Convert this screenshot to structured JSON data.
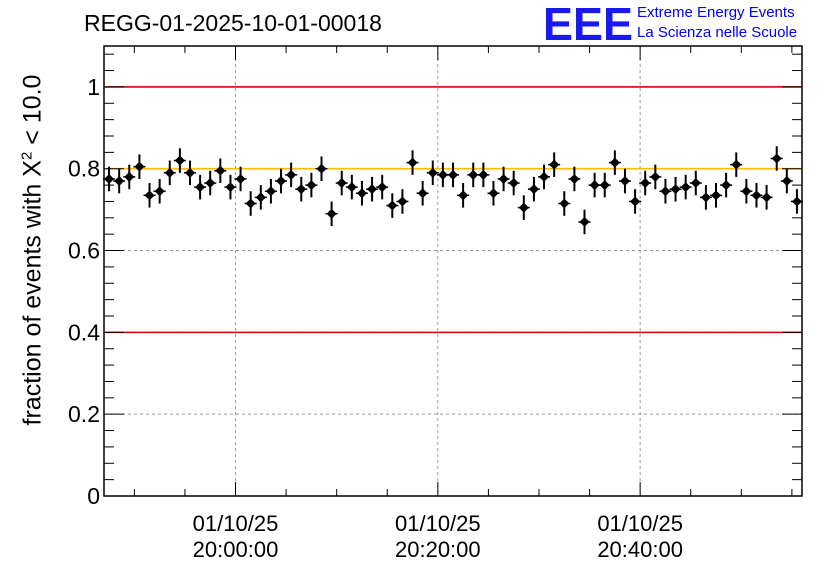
{
  "title": "REGG-01-2025-10-01-00018",
  "logo": {
    "mark": "EEE",
    "line1": "Extreme Energy Events",
    "line2": "La Scienza nelle Scuole",
    "color": "#1a1aee"
  },
  "chart_data": {
    "type": "scatter",
    "title": "REGG-01-2025-10-01-00018",
    "xlabel": "",
    "ylabel_parts": {
      "before": "fraction of events with ",
      "sym": "Χ",
      "sup": "2",
      "after": " < 10.0"
    },
    "x_unit": "minutes after 2025-10-01 19:47:00",
    "xlim": [
      0,
      69
    ],
    "ylim": [
      0,
      1.1
    ],
    "x_ticks": [
      {
        "x": 13,
        "line1": "01/10/25",
        "line2": "20:00:00"
      },
      {
        "x": 33,
        "line1": "01/10/25",
        "line2": "20:20:00"
      },
      {
        "x": 53,
        "line1": "01/10/25",
        "line2": "20:40:00"
      }
    ],
    "y_ticks": [
      {
        "value": 0,
        "label": "0"
      },
      {
        "value": 0.2,
        "label": "0.2"
      },
      {
        "value": 0.4,
        "label": "0.4"
      },
      {
        "value": 0.6,
        "label": "0.6"
      },
      {
        "value": 0.8,
        "label": "0.8"
      },
      {
        "value": 1.0,
        "label": "1"
      }
    ],
    "reference_lines": [
      {
        "y": 1.0,
        "color": "#dd0000"
      },
      {
        "y": 0.4,
        "color": "#dd0000"
      },
      {
        "y": 0.8,
        "color": "#ffbb00"
      }
    ],
    "grid": true,
    "series": [
      {
        "marker": "diamond",
        "color": "#000000",
        "error": 0.03,
        "x": [
          0.5,
          1.5,
          2.5,
          3.5,
          4.5,
          5.5,
          6.5,
          7.5,
          8.5,
          9.5,
          10.5,
          11.5,
          12.5,
          13.5,
          14.5,
          15.5,
          16.5,
          17.5,
          18.5,
          19.5,
          20.5,
          21.5,
          22.5,
          23.5,
          24.5,
          25.5,
          26.5,
          27.5,
          28.5,
          29.5,
          30.5,
          31.5,
          32.5,
          33.5,
          34.5,
          35.5,
          36.5,
          37.5,
          38.5,
          39.5,
          40.5,
          41.5,
          42.5,
          43.5,
          44.5,
          45.5,
          46.5,
          47.5,
          48.5,
          49.5,
          50.5,
          51.5,
          52.5,
          53.5,
          54.5,
          55.5,
          56.5,
          57.5,
          58.5,
          59.5,
          60.5,
          61.5,
          62.5,
          63.5,
          64.5,
          65.5,
          66.5,
          67.5,
          68.5
        ],
        "y": [
          0.775,
          0.77,
          0.78,
          0.805,
          0.735,
          0.745,
          0.79,
          0.82,
          0.79,
          0.755,
          0.765,
          0.795,
          0.755,
          0.775,
          0.715,
          0.73,
          0.745,
          0.77,
          0.785,
          0.75,
          0.76,
          0.8,
          0.69,
          0.765,
          0.755,
          0.74,
          0.75,
          0.755,
          0.71,
          0.72,
          0.815,
          0.74,
          0.79,
          0.785,
          0.785,
          0.735,
          0.785,
          0.785,
          0.74,
          0.775,
          0.765,
          0.705,
          0.75,
          0.78,
          0.81,
          0.715,
          0.775,
          0.67,
          0.76,
          0.76,
          0.815,
          0.77,
          0.72,
          0.765,
          0.78,
          0.745,
          0.75,
          0.755,
          0.765,
          0.73,
          0.735,
          0.76,
          0.81,
          0.745,
          0.735,
          0.73,
          0.825,
          0.77,
          0.72
        ]
      }
    ]
  }
}
